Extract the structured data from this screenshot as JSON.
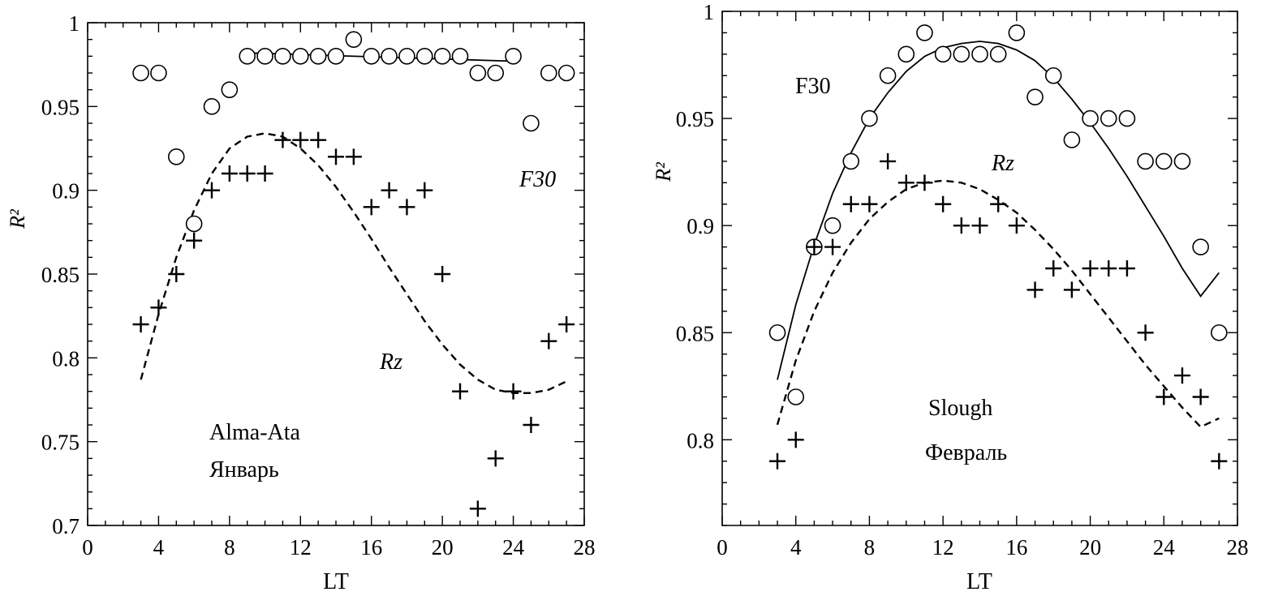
{
  "colors": {
    "ink": "#000000",
    "background": "#ffffff"
  },
  "chart_data": [
    {
      "type": "scatter",
      "title": "",
      "xlabel": "LT",
      "ylabel": "R²",
      "xlim": [
        0,
        28
      ],
      "ylim": [
        0.7,
        1.0
      ],
      "xticks": [
        "0",
        "4",
        "8",
        "12",
        "16",
        "20",
        "24",
        "28"
      ],
      "yticks": [
        "0.7",
        "0.75",
        "0.8",
        "0.85",
        "0.9",
        "0.95",
        "1"
      ],
      "annotations": {
        "location": "Alma-Ata",
        "month": "Январь",
        "f30_label": "F30",
        "rz_label": "Rz"
      },
      "series": [
        {
          "name": "F30",
          "marker": "circle",
          "x": [
            3,
            4,
            5,
            6,
            7,
            8,
            9,
            10,
            11,
            12,
            13,
            14,
            15,
            16,
            17,
            18,
            19,
            20,
            21,
            22,
            23,
            24,
            25,
            26,
            27
          ],
          "y": [
            0.97,
            0.97,
            0.92,
            0.88,
            0.95,
            0.96,
            0.98,
            0.98,
            0.98,
            0.98,
            0.98,
            0.98,
            0.99,
            0.98,
            0.98,
            0.98,
            0.98,
            0.98,
            0.98,
            0.97,
            0.97,
            0.98,
            0.94,
            0.97,
            0.97
          ]
        },
        {
          "name": "Rz",
          "marker": "plus",
          "x": [
            3,
            4,
            5,
            6,
            7,
            8,
            9,
            10,
            11,
            12,
            13,
            14,
            15,
            16,
            17,
            18,
            19,
            20,
            21,
            22,
            23,
            24,
            25,
            26,
            27
          ],
          "y": [
            0.82,
            0.83,
            0.85,
            0.87,
            0.9,
            0.91,
            0.91,
            0.91,
            0.93,
            0.93,
            0.93,
            0.92,
            0.92,
            0.89,
            0.9,
            0.89,
            0.9,
            0.85,
            0.78,
            0.71,
            0.74,
            0.78,
            0.76,
            0.81,
            0.82
          ]
        }
      ],
      "fits": [
        {
          "series": "F30",
          "style": "solid",
          "x": [
            9,
            24
          ],
          "y": [
            0.982,
            0.977
          ]
        },
        {
          "series": "Rz",
          "style": "dashed",
          "x": [
            3,
            4,
            5,
            6,
            7,
            8,
            9,
            10,
            11,
            12,
            13,
            14,
            15,
            16,
            17,
            18,
            19,
            20,
            21,
            22,
            23,
            24,
            25,
            26,
            27
          ],
          "y": [
            0.787,
            0.826,
            0.86,
            0.888,
            0.91,
            0.925,
            0.932,
            0.934,
            0.932,
            0.925,
            0.915,
            0.902,
            0.887,
            0.871,
            0.854,
            0.838,
            0.822,
            0.808,
            0.796,
            0.787,
            0.781,
            0.779,
            0.779,
            0.781,
            0.786
          ]
        }
      ]
    },
    {
      "type": "scatter",
      "title": "",
      "xlabel": "LT",
      "ylabel": "R²",
      "xlim": [
        0,
        28
      ],
      "ylim": [
        0.76,
        1.0
      ],
      "xticks": [
        "0",
        "4",
        "8",
        "12",
        "16",
        "20",
        "24",
        "28"
      ],
      "yticks": [
        "0.8",
        "0.85",
        "0.9",
        "0.95",
        "1"
      ],
      "annotations": {
        "location": "Slough",
        "month": "Февраль",
        "f30_label": "F30",
        "rz_label": "Rz"
      },
      "series": [
        {
          "name": "F30",
          "marker": "circle",
          "x": [
            3,
            4,
            5,
            6,
            7,
            8,
            9,
            10,
            11,
            12,
            13,
            14,
            15,
            16,
            17,
            18,
            19,
            20,
            21,
            22,
            23,
            24,
            25,
            26,
            27
          ],
          "y": [
            0.85,
            0.82,
            0.89,
            0.9,
            0.93,
            0.95,
            0.97,
            0.98,
            0.99,
            0.98,
            0.98,
            0.98,
            0.98,
            0.99,
            0.96,
            0.97,
            0.94,
            0.95,
            0.95,
            0.95,
            0.93,
            0.93,
            0.93,
            0.89,
            0.85
          ]
        },
        {
          "name": "Rz",
          "marker": "plus",
          "x": [
            3,
            4,
            5,
            6,
            7,
            8,
            9,
            10,
            11,
            12,
            13,
            14,
            15,
            16,
            17,
            18,
            19,
            20,
            21,
            22,
            23,
            24,
            25,
            26,
            27
          ],
          "y": [
            0.79,
            0.8,
            0.89,
            0.89,
            0.91,
            0.91,
            0.93,
            0.92,
            0.92,
            0.91,
            0.9,
            0.9,
            0.91,
            0.9,
            0.87,
            0.88,
            0.87,
            0.88,
            0.88,
            0.88,
            0.85,
            0.82,
            0.83,
            0.82,
            0.79
          ]
        }
      ],
      "fits": [
        {
          "series": "F30",
          "style": "solid",
          "x": [
            3,
            4,
            5,
            6,
            7,
            8,
            9,
            10,
            11,
            12,
            13,
            14,
            15,
            16,
            17,
            18,
            19,
            20,
            21,
            22,
            23,
            24,
            25,
            26,
            27
          ],
          "y": [
            0.828,
            0.863,
            0.891,
            0.915,
            0.934,
            0.95,
            0.962,
            0.972,
            0.979,
            0.983,
            0.985,
            0.986,
            0.985,
            0.982,
            0.977,
            0.969,
            0.959,
            0.948,
            0.936,
            0.923,
            0.909,
            0.895,
            0.88,
            0.867,
            0.878
          ]
        },
        {
          "series": "Rz",
          "style": "dashed",
          "x": [
            3,
            4,
            5,
            6,
            7,
            8,
            9,
            10,
            11,
            12,
            13,
            14,
            15,
            16,
            17,
            18,
            19,
            20,
            21,
            22,
            23,
            24,
            25,
            26,
            27
          ],
          "y": [
            0.807,
            0.837,
            0.86,
            0.878,
            0.892,
            0.903,
            0.911,
            0.917,
            0.92,
            0.921,
            0.92,
            0.917,
            0.912,
            0.906,
            0.898,
            0.889,
            0.879,
            0.868,
            0.857,
            0.846,
            0.835,
            0.825,
            0.815,
            0.806,
            0.81
          ]
        }
      ]
    }
  ]
}
